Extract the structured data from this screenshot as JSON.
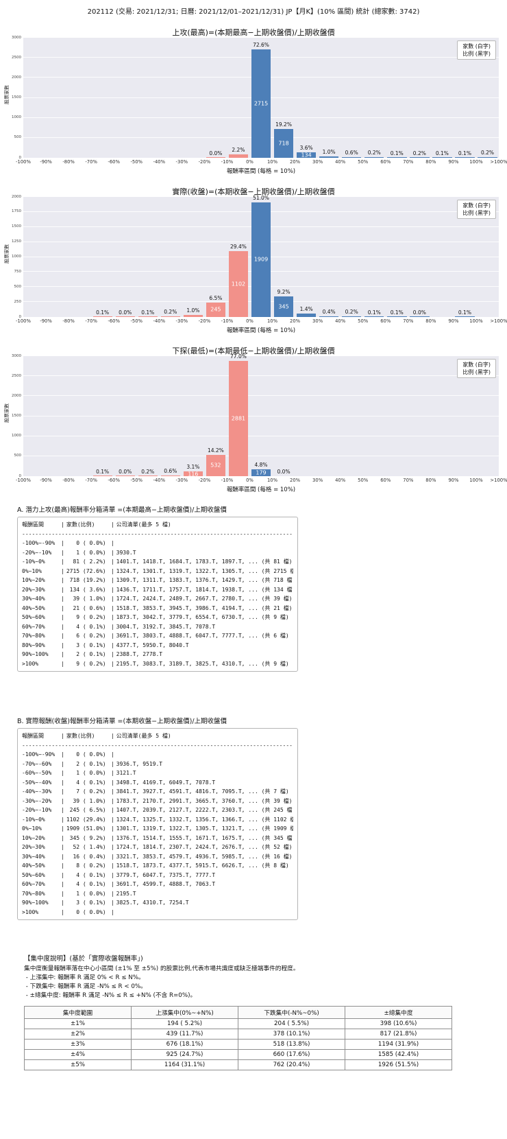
{
  "ui": {
    "negative_color": "#f2918a",
    "positive_color": "#4d7fb8",
    "plot_bg": "#eaeaf1"
  },
  "header": {
    "title": "202112 (交易: 2021/12/31; 日曆: 2021/12/01–2021/12/31) JP【月K】(10% 區間) 統計 (總家數: 3742)"
  },
  "chart_data": [
    {
      "type": "bar",
      "title": "上攻(最高)=(本期最高−上期收盤價)/上期收盤價",
      "xlabel": "報酬率區間 (每格 = 10%)",
      "ylabel": "股票家數",
      "legend": {
        "line1": "家數 (白字)",
        "line2": "比例 (黑字)"
      },
      "ylim": [
        0,
        3000
      ],
      "y_ticks": [
        0,
        500,
        1000,
        1500,
        2000,
        2500,
        3000
      ],
      "x_ticks": [
        "-100%",
        "-90%",
        "-80%",
        "-70%",
        "-60%",
        "-50%",
        "-40%",
        "-30%",
        "-20%",
        "-10%",
        "0%",
        "10%",
        "20%",
        "30%",
        "40%",
        "50%",
        "60%",
        "70%",
        "80%",
        "90%",
        "100%",
        ">100%"
      ],
      "bins": [
        [
          0,
          null
        ],
        [
          0,
          null
        ],
        [
          0,
          null
        ],
        [
          0,
          null
        ],
        [
          0,
          null
        ],
        [
          0,
          null
        ],
        [
          0,
          null
        ],
        [
          0,
          null
        ],
        [
          1,
          "0.0%"
        ],
        [
          81,
          "2.2%"
        ],
        [
          2715,
          "72.6%"
        ],
        [
          718,
          "19.2%"
        ],
        [
          134,
          "3.6%"
        ],
        [
          39,
          "1.0%"
        ],
        [
          21,
          "0.6%"
        ],
        [
          9,
          "0.2%"
        ],
        [
          4,
          "0.1%"
        ],
        [
          6,
          "0.2%"
        ],
        [
          3,
          "0.1%"
        ],
        [
          2,
          "0.1%"
        ],
        [
          9,
          "0.2%"
        ]
      ]
    },
    {
      "type": "bar",
      "title": "實際(收盤)=(本期收盤−上期收盤價)/上期收盤價",
      "xlabel": "報酬率區間 (每格 = 10%)",
      "ylabel": "股票家數",
      "legend": {
        "line1": "家數 (白字)",
        "line2": "比例 (黑字)"
      },
      "ylim": [
        0,
        2000
      ],
      "y_ticks": [
        0,
        250,
        500,
        750,
        1000,
        1250,
        1500,
        1750,
        2000
      ],
      "x_ticks": [
        "-100%",
        "-90%",
        "-80%",
        "-70%",
        "-60%",
        "-50%",
        "-40%",
        "-30%",
        "-20%",
        "-10%",
        "0%",
        "10%",
        "20%",
        "30%",
        "40%",
        "50%",
        "60%",
        "70%",
        "80%",
        "90%",
        "100%",
        ">100%"
      ],
      "bins": [
        [
          0,
          null
        ],
        [
          0,
          null
        ],
        [
          0,
          null
        ],
        [
          2,
          "0.1%"
        ],
        [
          1,
          "0.0%"
        ],
        [
          4,
          "0.1%"
        ],
        [
          7,
          "0.2%"
        ],
        [
          39,
          "1.0%"
        ],
        [
          245,
          "6.5%"
        ],
        [
          1102,
          "29.4%"
        ],
        [
          1909,
          "51.0%"
        ],
        [
          345,
          "9.2%"
        ],
        [
          52,
          "1.4%"
        ],
        [
          16,
          "0.4%"
        ],
        [
          8,
          "0.2%"
        ],
        [
          4,
          "0.1%"
        ],
        [
          4,
          "0.1%"
        ],
        [
          1,
          "0.0%"
        ],
        [
          0,
          null
        ],
        [
          3,
          "0.1%"
        ],
        [
          0,
          null
        ]
      ]
    },
    {
      "type": "bar",
      "title": "下探(最低)=(本期最低−上期收盤價)/上期收盤價",
      "xlabel": "報酬率區間 (每格 = 10%)",
      "ylabel": "股票家數",
      "legend": {
        "line1": "家數 (白字)",
        "line2": "比例 (黑字)"
      },
      "ylim": [
        0,
        3000
      ],
      "y_ticks": [
        0,
        500,
        1000,
        1500,
        2000,
        2500,
        3000
      ],
      "x_ticks": [
        "-100%",
        "-90%",
        "-80%",
        "-70%",
        "-60%",
        "-50%",
        "-40%",
        "-30%",
        "-20%",
        "-10%",
        "0%",
        "10%",
        "20%",
        "30%",
        "40%",
        "50%",
        "60%",
        "70%",
        "80%",
        "90%",
        "100%",
        ">100%"
      ],
      "bins": [
        [
          0,
          null
        ],
        [
          0,
          null
        ],
        [
          0,
          null
        ],
        [
          4,
          "0.1%"
        ],
        [
          1,
          "0.0%"
        ],
        [
          7,
          "0.2%"
        ],
        [
          22,
          "0.6%"
        ],
        [
          116,
          "3.1%"
        ],
        [
          532,
          "14.2%"
        ],
        [
          2881,
          "77.0%"
        ],
        [
          179,
          "4.8%"
        ],
        [
          0,
          "0.0%"
        ],
        [
          0,
          null
        ],
        [
          0,
          null
        ],
        [
          0,
          null
        ],
        [
          0,
          null
        ],
        [
          0,
          null
        ],
        [
          0,
          null
        ],
        [
          0,
          null
        ],
        [
          0,
          null
        ],
        [
          0,
          null
        ]
      ]
    }
  ],
  "listing_a": {
    "title": "A. 潛力上攻(最高)報酬率分箱清單 =(本期最高−上期收盤價)/上期收盤價",
    "header": [
      "報酬區間",
      "家數(比例)",
      "公司清單(最多 5 檔)"
    ],
    "separator": "--------------------------------------------------------------------------------------------------------------",
    "rows": [
      [
        "-100%~-90%",
        "   0 ( 0.0%)",
        ""
      ],
      [
        "-20%~-10%",
        "   1 ( 0.0%)",
        "3930.T"
      ],
      [
        "-10%~0%",
        "  81 ( 2.2%)",
        "1401.T, 1418.T, 1684.T, 1783.T, 1897.T, ... (共 81 檔)"
      ],
      [
        "0%~10%",
        "2715 (72.6%)",
        "1324.T, 1301.T, 1319.T, 1322.T, 1305.T, ... (共 2715 檔)"
      ],
      [
        "10%~20%",
        " 718 (19.2%)",
        "1309.T, 1311.T, 1383.T, 1376.T, 1429.T, ... (共 718 檔)"
      ],
      [
        "20%~30%",
        " 134 ( 3.6%)",
        "1436.T, 1711.T, 1757.T, 1814.T, 1938.T, ... (共 134 檔)"
      ],
      [
        "30%~40%",
        "  39 ( 1.0%)",
        "1724.T, 2424.T, 2489.T, 2667.T, 2780.T, ... (共 39 檔)"
      ],
      [
        "40%~50%",
        "  21 ( 0.6%)",
        "1518.T, 3853.T, 3945.T, 3986.T, 4194.T, ... (共 21 檔)"
      ],
      [
        "50%~60%",
        "   9 ( 0.2%)",
        "1873.T, 3042.T, 3779.T, 6554.T, 6730.T, ... (共 9 檔)"
      ],
      [
        "60%~70%",
        "   4 ( 0.1%)",
        "3004.T, 3192.T, 3845.T, 7078.T"
      ],
      [
        "70%~80%",
        "   6 ( 0.2%)",
        "3691.T, 3803.T, 4888.T, 6047.T, 7777.T, ... (共 6 檔)"
      ],
      [
        "80%~90%",
        "   3 ( 0.1%)",
        "4377.T, 5950.T, 8040.T"
      ],
      [
        "90%~100%",
        "   2 ( 0.1%)",
        "2388.T, 2778.T"
      ],
      [
        ">100%",
        "   9 ( 0.2%)",
        "2195.T, 3083.T, 3189.T, 3825.T, 4310.T, ... (共 9 檔)"
      ]
    ]
  },
  "listing_b": {
    "title": "B. 實際報酬(收盤)報酬率分箱清單 =(本期收盤−上期收盤價)/上期收盤價",
    "header": [
      "報酬區間",
      "家數(比例)",
      "公司清單(最多 5 檔)"
    ],
    "separator": "--------------------------------------------------------------------------------------------------------------",
    "rows": [
      [
        "-100%~-90%",
        "   0 ( 0.0%)",
        ""
      ],
      [
        "-70%~-60%",
        "   2 ( 0.1%)",
        "3936.T, 9519.T"
      ],
      [
        "-60%~-50%",
        "   1 ( 0.0%)",
        "3121.T"
      ],
      [
        "-50%~-40%",
        "   4 ( 0.1%)",
        "3498.T, 4169.T, 6049.T, 7078.T"
      ],
      [
        "-40%~-30%",
        "   7 ( 0.2%)",
        "3841.T, 3927.T, 4591.T, 4816.T, 7095.T, ... (共 7 檔)"
      ],
      [
        "-30%~-20%",
        "  39 ( 1.0%)",
        "1783.T, 2170.T, 2991.T, 3665.T, 3760.T, ... (共 39 檔)"
      ],
      [
        "-20%~-10%",
        " 245 ( 6.5%)",
        "1407.T, 2039.T, 2127.T, 2222.T, 2303.T, ... (共 245 檔)"
      ],
      [
        "-10%~0%",
        "1102 (29.4%)",
        "1324.T, 1325.T, 1332.T, 1356.T, 1366.T, ... (共 1102 檔)"
      ],
      [
        "0%~10%",
        "1909 (51.0%)",
        "1301.T, 1319.T, 1322.T, 1305.T, 1321.T, ... (共 1909 檔)"
      ],
      [
        "10%~20%",
        " 345 ( 9.2%)",
        "1376.T, 1514.T, 1555.T, 1671.T, 1675.T, ... (共 345 檔)"
      ],
      [
        "20%~30%",
        "  52 ( 1.4%)",
        "1724.T, 1814.T, 2307.T, 2424.T, 2676.T, ... (共 52 檔)"
      ],
      [
        "30%~40%",
        "  16 ( 0.4%)",
        "3321.T, 3853.T, 4579.T, 4936.T, 5985.T, ... (共 16 檔)"
      ],
      [
        "40%~50%",
        "   8 ( 0.2%)",
        "1518.T, 1873.T, 4377.T, 5915.T, 6626.T, ... (共 8 檔)"
      ],
      [
        "50%~60%",
        "   4 ( 0.1%)",
        "3779.T, 6047.T, 7375.T, 7777.T"
      ],
      [
        "60%~70%",
        "   4 ( 0.1%)",
        "3691.T, 4599.T, 4888.T, 7063.T"
      ],
      [
        "70%~80%",
        "   1 ( 0.0%)",
        "2195.T"
      ],
      [
        "90%~100%",
        "   3 ( 0.1%)",
        "3825.T, 4310.T, 7254.T"
      ],
      [
        ">100%",
        "   0 ( 0.0%)",
        ""
      ]
    ]
  },
  "concentration": {
    "title": "【集中度說明】(基於「實際收盤報酬率」)",
    "notes": [
      "集中度衡量報酬率落在中心小區間 (±1% 至 ±5%) 的股票比例,代表市場共識度或缺乏極端事件的程度。",
      " - 上漲集中: 報酬率 R 滿足 0% < R ≤ N%。",
      " - 下跌集中: 報酬率 R 滿足 -N% ≤ R < 0%。",
      " - ±總集中度: 報酬率 R 滿足 -N% ≤ R ≤ +N% (不含 R=0%)。"
    ],
    "table": {
      "headers": [
        "集中度範圍",
        "上漲集中(0%~+N%)",
        "下跌集中(-N%~0%)",
        "±總集中度"
      ],
      "rows": [
        [
          "±1%",
          "194 ( 5.2%)",
          "204 ( 5.5%)",
          "398 (10.6%)"
        ],
        [
          "±2%",
          "439 (11.7%)",
          "378 (10.1%)",
          "817 (21.8%)"
        ],
        [
          "±3%",
          "676 (18.1%)",
          "518 (13.8%)",
          "1194 (31.9%)"
        ],
        [
          "±4%",
          "925 (24.7%)",
          "660 (17.6%)",
          "1585 (42.4%)"
        ],
        [
          "±5%",
          "1164 (31.1%)",
          "762 (20.4%)",
          "1926 (51.5%)"
        ]
      ]
    }
  }
}
